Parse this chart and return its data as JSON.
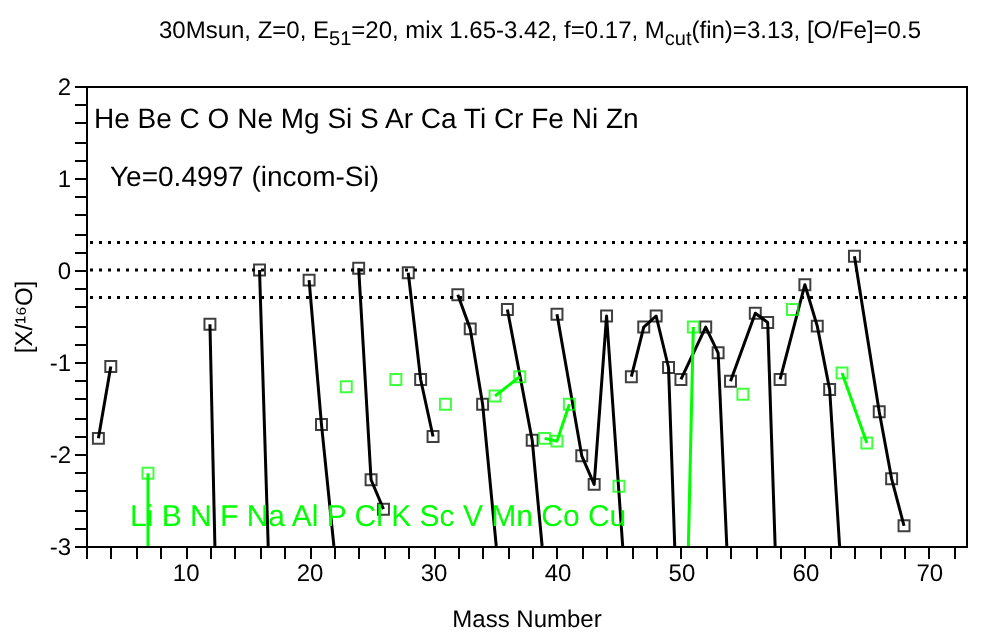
{
  "chart_data": {
    "type": "line",
    "title": "30Msun, Z=0, E$_{51}$=20, mix 1.65-3.42, f=0.17, M$_{cut}$(fin)=3.13, [O/Fe]=0.5",
    "xlabel": "Mass Number",
    "ylabel": "[X/¹⁶O]",
    "annotations": [
      "He Be C O Ne Mg Si S Ar Ca Ti Cr Fe Ni Zn",
      "Ye=0.4997 (incom-Si)",
      "Li B N F Na Al P Cl K Sc V Mn Co Cu"
    ],
    "xlim": [
      2,
      73
    ],
    "ylim": [
      -3,
      2
    ],
    "xticks": [
      {
        "value": 2,
        "label": null
      },
      {
        "value": 4,
        "label": null
      },
      {
        "value": 6,
        "label": null
      },
      {
        "value": 8,
        "label": null
      },
      10,
      {
        "value": 12,
        "label": null
      },
      {
        "value": 14,
        "label": null
      },
      {
        "value": 16,
        "label": null
      },
      {
        "value": 18,
        "label": null
      },
      20,
      {
        "value": 22,
        "label": null
      },
      {
        "value": 24,
        "label": null
      },
      {
        "value": 26,
        "label": null
      },
      {
        "value": 28,
        "label": null
      },
      30,
      {
        "value": 32,
        "label": null
      },
      {
        "value": 34,
        "label": null
      },
      {
        "value": 36,
        "label": null
      },
      {
        "value": 38,
        "label": null
      },
      40,
      {
        "value": 42,
        "label": null
      },
      {
        "value": 44,
        "label": null
      },
      {
        "value": 46,
        "label": null
      },
      {
        "value": 48,
        "label": null
      },
      50,
      {
        "value": 52,
        "label": null
      },
      {
        "value": 54,
        "label": null
      },
      {
        "value": 56,
        "label": null
      },
      {
        "value": 58,
        "label": null
      },
      60,
      {
        "value": 62,
        "label": null
      },
      {
        "value": 64,
        "label": null
      },
      {
        "value": 66,
        "label": null
      },
      {
        "value": 68,
        "label": null
      },
      70,
      {
        "value": 72,
        "label": null
      }
    ],
    "yticks": [
      -3,
      {
        "value": -2.8,
        "label": null
      },
      {
        "value": -2.6,
        "label": null
      },
      {
        "value": -2.4,
        "label": null
      },
      {
        "value": -2.2,
        "label": null
      },
      -2,
      {
        "value": -1.8,
        "label": null
      },
      {
        "value": -1.6,
        "label": null
      },
      {
        "value": -1.4,
        "label": null
      },
      {
        "value": -1.2,
        "label": null
      },
      -1,
      {
        "value": -0.8,
        "label": null
      },
      {
        "value": -0.6,
        "label": null
      },
      {
        "value": -0.4,
        "label": null
      },
      {
        "value": -0.2,
        "label": null
      },
      0,
      {
        "value": 0.2,
        "label": null
      },
      {
        "value": 0.4,
        "label": null
      },
      {
        "value": 0.6,
        "label": null
      },
      {
        "value": 0.8,
        "label": null
      },
      1,
      {
        "value": 1.2,
        "label": null
      },
      {
        "value": 1.4,
        "label": null
      },
      {
        "value": 1.6,
        "label": null
      },
      {
        "value": 1.8,
        "label": null
      },
      2
    ],
    "ref_lines": [
      {
        "axis": "y",
        "value": 0.3,
        "line_style": "dotted"
      },
      {
        "axis": "y",
        "value": 0,
        "line_style": "dotted"
      },
      {
        "axis": "y",
        "value": -0.3,
        "line_style": "dotted"
      }
    ],
    "grid": false,
    "series": [
      {
        "color": "#000000",
        "marker": "none",
        "x": [
          3,
          4
        ],
        "values": [
          -1.83,
          -1.05
        ]
      },
      {
        "color": "#000000",
        "marker": "none",
        "x": [
          12,
          12.4
        ],
        "values": [
          -0.59,
          -3
        ]
      },
      {
        "color": "#000000",
        "marker": "none",
        "x": [
          16,
          16.7
        ],
        "values": [
          0,
          -3
        ]
      },
      {
        "color": "#000000",
        "marker": "none",
        "x": [
          20,
          21,
          22
        ],
        "values": [
          -0.11,
          -1.68,
          -3
        ]
      },
      {
        "color": "#000000",
        "marker": "none",
        "x": [
          24,
          25,
          26
        ],
        "values": [
          0.02,
          -2.28,
          -2.6
        ]
      },
      {
        "color": "#000000",
        "marker": "none",
        "x": [
          28,
          29,
          30
        ],
        "values": [
          -0.03,
          -1.19,
          -1.81
        ]
      },
      {
        "color": "#000000",
        "marker": "none",
        "x": [
          32,
          33,
          34,
          35.1
        ],
        "values": [
          -0.27,
          -0.64,
          -1.46,
          -3
        ]
      },
      {
        "color": "#000000",
        "marker": "none",
        "x": [
          36,
          38,
          38.8
        ],
        "values": [
          -0.43,
          -1.85,
          -3
        ]
      },
      {
        "color": "#000000",
        "marker": "none",
        "x": [
          40,
          42,
          43,
          44,
          45.3
        ],
        "values": [
          -0.48,
          -2.02,
          -2.33,
          -0.5,
          -3
        ]
      },
      {
        "color": "#000000",
        "marker": "none",
        "x": [
          46,
          47,
          48,
          49,
          49.5
        ],
        "values": [
          -1.16,
          -0.62,
          -0.5,
          -1.06,
          -3
        ]
      },
      {
        "color": "#000000",
        "marker": "none",
        "x": [
          50,
          52,
          53,
          53.7
        ],
        "values": [
          -1.19,
          -0.62,
          -0.9,
          -3
        ]
      },
      {
        "color": "#000000",
        "marker": "none",
        "x": [
          54,
          56,
          57,
          57.6
        ],
        "values": [
          -1.21,
          -0.47,
          -0.57,
          -3
        ]
      },
      {
        "color": "#000000",
        "marker": "none",
        "x": [
          58,
          60,
          61,
          62,
          62.8
        ],
        "values": [
          -1.19,
          -0.16,
          -0.61,
          -1.3,
          -3
        ]
      },
      {
        "color": "#000000",
        "marker": "none",
        "x": [
          64,
          66,
          67,
          68
        ],
        "values": [
          0.15,
          -1.54,
          -2.27,
          -2.78
        ]
      },
      {
        "color": "#00ff00",
        "marker": "none",
        "x": [
          7,
          7
        ],
        "values": [
          -2.21,
          -3
        ]
      },
      {
        "color": "#00ff00",
        "marker": "none",
        "x": [
          35,
          37
        ],
        "values": [
          -1.37,
          -1.16
        ]
      },
      {
        "color": "#00ff00",
        "marker": "none",
        "x": [
          39,
          40,
          41
        ],
        "values": [
          -1.83,
          -1.86,
          -1.46
        ]
      },
      {
        "color": "#00ff00",
        "marker": "none",
        "x": [
          50.6,
          51
        ],
        "values": [
          -3,
          -0.62
        ]
      },
      {
        "color": "#00ff00",
        "marker": "none",
        "x": [
          63,
          65
        ],
        "values": [
          -1.12,
          -1.88
        ]
      },
      {
        "type": "scatter",
        "color": "#000000",
        "marker": "square",
        "x": [
          3,
          4,
          12,
          16,
          20,
          21,
          24,
          25,
          26,
          28,
          29,
          30,
          32,
          33,
          34,
          36,
          38,
          40,
          42,
          43,
          44,
          46,
          47,
          48,
          49,
          50,
          52,
          53,
          54,
          56,
          57,
          58,
          60,
          61,
          62,
          64,
          66,
          67,
          68
        ],
        "values": [
          -1.83,
          -1.05,
          -0.59,
          0,
          -0.11,
          -1.68,
          0.02,
          -2.28,
          -2.6,
          -0.03,
          -1.19,
          -1.81,
          -0.27,
          -0.64,
          -1.46,
          -0.43,
          -1.85,
          -0.48,
          -2.02,
          -2.33,
          -0.5,
          -1.16,
          -0.62,
          -0.5,
          -1.06,
          -1.19,
          -0.62,
          -0.9,
          -1.21,
          -0.47,
          -0.57,
          -1.19,
          -0.16,
          -0.61,
          -1.3,
          0.15,
          -1.54,
          -2.27,
          -2.78
        ]
      },
      {
        "type": "scatter",
        "color": "#00ff00",
        "marker": "square",
        "x": [
          7,
          23,
          27,
          31,
          35,
          37,
          39,
          40,
          41,
          45,
          51,
          55,
          59,
          63,
          65
        ],
        "values": [
          -2.21,
          -1.27,
          -1.19,
          -1.46,
          -1.37,
          -1.16,
          -1.83,
          -1.86,
          -1.46,
          -2.35,
          -0.62,
          -1.35,
          -0.43,
          -1.12,
          -1.88
        ]
      }
    ]
  }
}
